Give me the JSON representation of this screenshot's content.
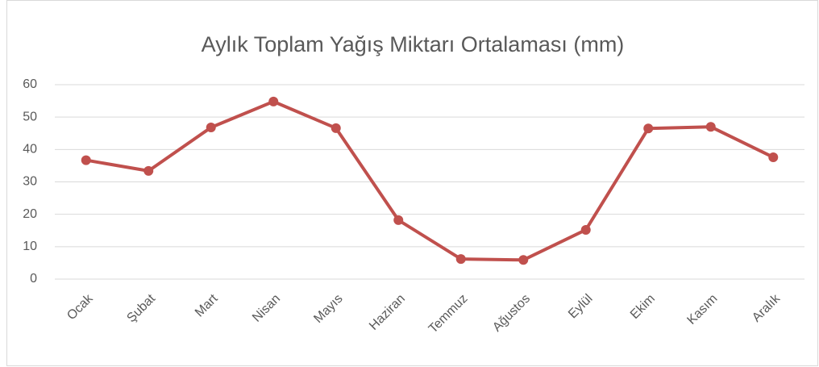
{
  "chart_data": {
    "type": "line",
    "title": "Aylık Toplam Yağış Miktarı Ortalaması (mm)",
    "categories": [
      "Ocak",
      "Şubat",
      "Mart",
      "Nisan",
      "Mayıs",
      "Haziran",
      "Temmuz",
      "Ağustos",
      "Eylül",
      "Ekim",
      "Kasım",
      "Aralık"
    ],
    "values": [
      36.7,
      33.4,
      46.8,
      54.8,
      46.6,
      18.2,
      6.2,
      5.9,
      15.2,
      46.5,
      47.0,
      37.6
    ],
    "color": "#c0504d",
    "ylim": [
      0,
      60
    ],
    "yticks": [
      0,
      10,
      20,
      30,
      40,
      50,
      60
    ],
    "grid": true
  }
}
